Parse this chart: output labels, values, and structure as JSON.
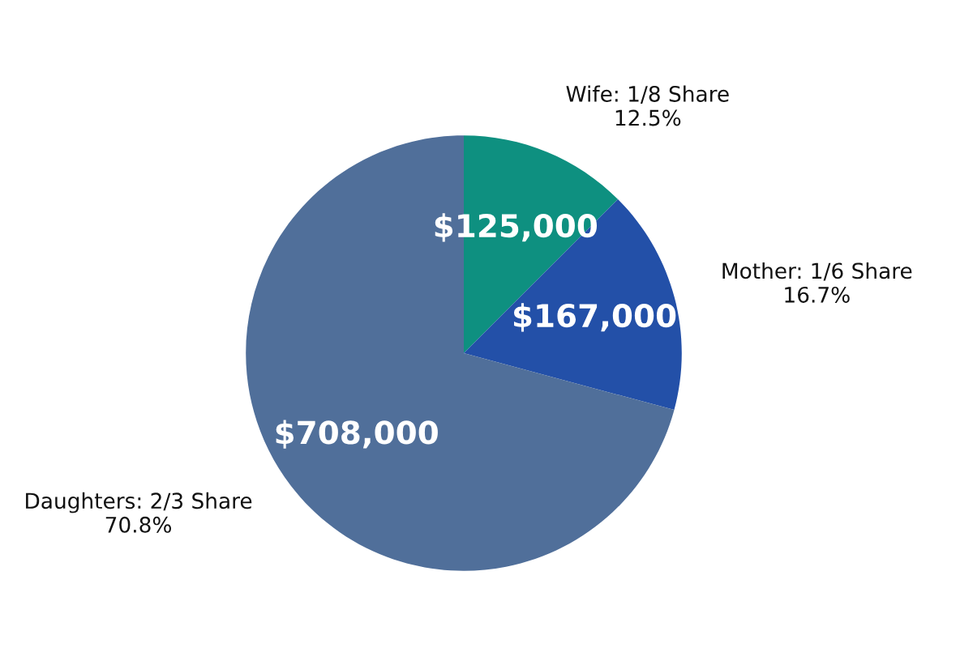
{
  "chart_data": {
    "type": "pie",
    "categories": [
      "Wife: 1/8 Share",
      "Mother: 1/6 Share",
      "Daughters: 2/3 Share"
    ],
    "values": [
      125000,
      167000,
      708000
    ],
    "value_labels": [
      "$125,000",
      "$167,000",
      "$708,000"
    ],
    "colors": [
      "#0e9080",
      "#2350a8",
      "#506f9a"
    ],
    "annotations": [
      {
        "text": "12.5%",
        "x": "Wife: 1/8 Share"
      },
      {
        "text": "16.7%",
        "x": "Mother: 1/6 Share"
      },
      {
        "text": "70.8%",
        "x": "Daughters: 2/3 Share"
      }
    ],
    "legend": false
  }
}
